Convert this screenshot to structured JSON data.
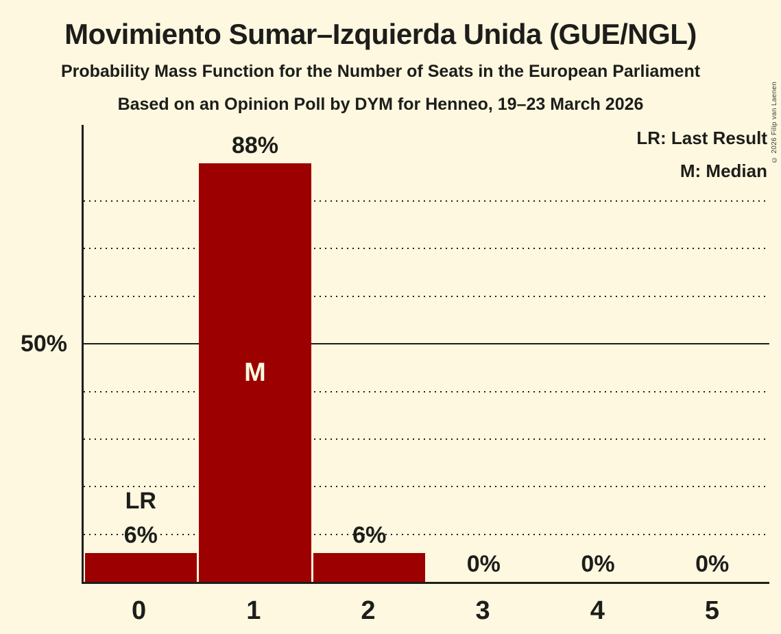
{
  "header": {
    "title": "Movimiento Sumar–Izquierda Unida (GUE/NGL)",
    "subtitle1": "Probability Mass Function for the Number of Seats in the European Parliament",
    "subtitle2": "Based on an Opinion Poll by DYM for Henneo, 19–23 March 2026"
  },
  "copyright": "© 2026 Filip van Laenen",
  "legend": {
    "last_result": "LR: Last Result",
    "median": "M: Median"
  },
  "colors": {
    "background": "#FDF8DF",
    "bar": "#9C0000",
    "text": "#1D1D1B"
  },
  "chart_data": {
    "type": "bar",
    "title": "Probability Mass Function for the Number of Seats in the European Parliament",
    "categories": [
      "0",
      "1",
      "2",
      "3",
      "4",
      "5"
    ],
    "values": [
      6,
      88,
      6,
      0,
      0,
      0
    ],
    "value_labels": [
      "6%",
      "88%",
      "6%",
      "0%",
      "0%",
      "0%"
    ],
    "annotations": [
      {
        "index": 0,
        "text": "LR",
        "position": "above"
      },
      {
        "index": 1,
        "text": "M",
        "position": "inside"
      }
    ],
    "xlabel": "",
    "ylabel": "",
    "ylim": [
      0,
      96
    ],
    "ytick": {
      "value": 50,
      "label": "50%"
    },
    "gridlines": [
      {
        "value": 10,
        "style": "dotted"
      },
      {
        "value": 20,
        "style": "dotted"
      },
      {
        "value": 30,
        "style": "dotted"
      },
      {
        "value": 40,
        "style": "dotted"
      },
      {
        "value": 50,
        "style": "solid"
      },
      {
        "value": 60,
        "style": "dotted"
      },
      {
        "value": 70,
        "style": "dotted"
      },
      {
        "value": 80,
        "style": "dotted"
      }
    ],
    "legend_position": "top-right",
    "grid": true
  }
}
